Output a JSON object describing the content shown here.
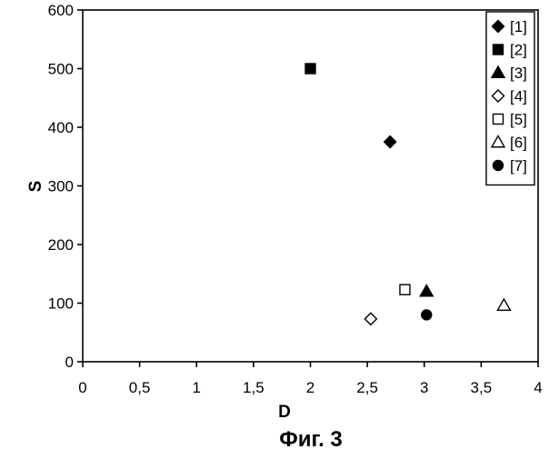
{
  "chart_data": {
    "type": "scatter",
    "title": "",
    "xlabel": "D",
    "ylabel": "S",
    "xlim": [
      0,
      4
    ],
    "ylim": [
      0,
      600
    ],
    "x_ticks": [
      0,
      0.5,
      1,
      1.5,
      2,
      2.5,
      3,
      3.5,
      4
    ],
    "x_tick_labels": [
      "0",
      "0,5",
      "1",
      "1,5",
      "2",
      "2,5",
      "3",
      "3,5",
      "4"
    ],
    "y_ticks": [
      0,
      100,
      200,
      300,
      400,
      500,
      600
    ],
    "y_tick_labels": [
      "0",
      "100",
      "200",
      "300",
      "400",
      "500",
      "600"
    ],
    "grid": false,
    "legend_position": "top-right",
    "series": [
      {
        "name": "[1]",
        "marker": "diamond-filled",
        "x": [
          2.7
        ],
        "y": [
          375
        ]
      },
      {
        "name": "[2]",
        "marker": "square-filled",
        "x": [
          2.0
        ],
        "y": [
          500
        ]
      },
      {
        "name": "[3]",
        "marker": "triangle-filled",
        "x": [
          3.02
        ],
        "y": [
          120
        ]
      },
      {
        "name": "[4]",
        "marker": "diamond-open",
        "x": [
          2.53
        ],
        "y": [
          73
        ]
      },
      {
        "name": "[5]",
        "marker": "square-open",
        "x": [
          2.83
        ],
        "y": [
          123
        ]
      },
      {
        "name": "[6]",
        "marker": "triangle-open",
        "x": [
          3.7
        ],
        "y": [
          96
        ]
      },
      {
        "name": "[7]",
        "marker": "circle-filled",
        "x": [
          3.02
        ],
        "y": [
          80
        ]
      }
    ],
    "colors": {
      "marker": "#000000",
      "axis": "#000000",
      "legend_border": "#000000"
    }
  },
  "caption": "Фиг. 3"
}
